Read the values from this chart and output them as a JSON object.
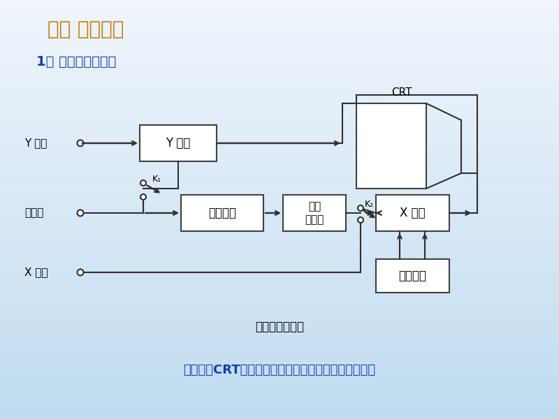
{
  "title_main": "三、 实验原理",
  "title_sub": "1、 示波器基本结构",
  "caption": "示波器原理框图",
  "bottom_text": "示波管（CRT）、电子放大系统、扫描触发系统、电源",
  "title_color": "#c87800",
  "blue_color": "#1040b0",
  "bg_top": "#f0f6fc",
  "bg_bottom": "#c8dff0",
  "lw": 1.5
}
